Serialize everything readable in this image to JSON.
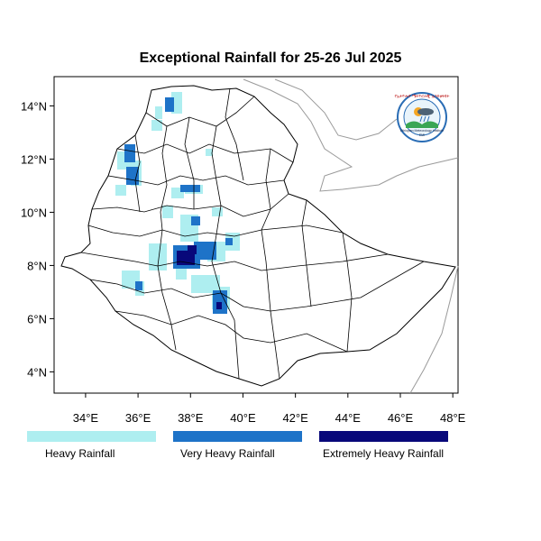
{
  "title": "Exceptional Rainfall for 25-26 Jul 2025",
  "logo": {
    "agency_text": "የኢትዮጵያ ሜትዮሮሎጂ ኢንስቲትዩት",
    "english_text": "Ethiopian Meteorology Institute",
    "abbr": "EMI"
  },
  "map": {
    "lon_range": [
      32.8,
      48.2
    ],
    "lat_range": [
      3.2,
      15.1
    ],
    "x_ticks": [
      "34°E",
      "36°E",
      "38°E",
      "40°E",
      "42°E",
      "44°E",
      "46°E",
      "48°E"
    ],
    "y_ticks": [
      "4°N",
      "6°N",
      "8°N",
      "10°N",
      "12°N",
      "14°N"
    ]
  },
  "legend": [
    {
      "label": "Heavy Rainfall",
      "color": "#aeeef0"
    },
    {
      "label": "Very Heavy Rainfall",
      "color": "#1e73c8"
    },
    {
      "label": "Extremely Heavy Rainfall",
      "color": "#08087a"
    }
  ]
}
